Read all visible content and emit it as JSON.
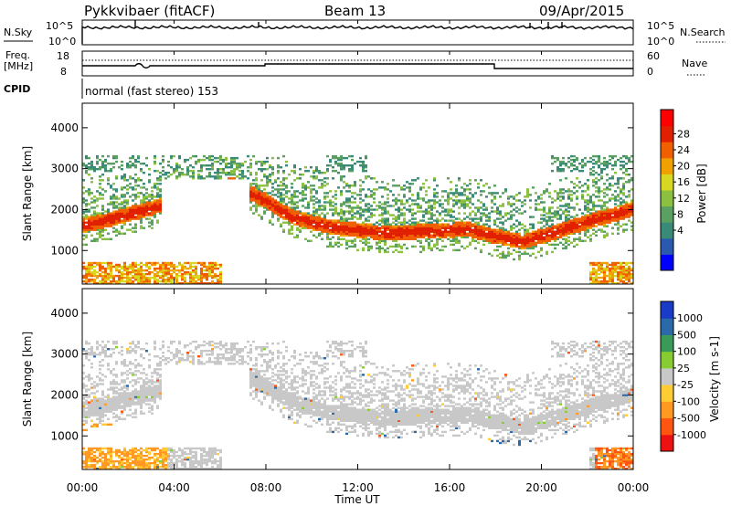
{
  "header": {
    "title": "Pykkvibaer (fitACF)",
    "beam": "Beam 13",
    "date": "09/Apr/2015"
  },
  "top_panels": {
    "nsky_label": "N.Sky",
    "nsky_ticks": [
      "10^5",
      "10^0"
    ],
    "nsearch_label": "N.Search",
    "nsearch_ticks": [
      "10^5",
      "10^0"
    ],
    "freq_label_1": "Freq.",
    "freq_label_2": "[MHz]",
    "freq_ticks": [
      "18",
      "8"
    ],
    "nave_label": "Nave",
    "nave_ticks": [
      "60",
      "0"
    ],
    "cpid_label": "CPID",
    "cpid_text": "normal (fast stereo) 153"
  },
  "chart_data": [
    {
      "type": "heatmap",
      "name": "power",
      "ylabel": "Slant Range [km]",
      "ylim": [
        180,
        4600
      ],
      "yticks": [
        "4000",
        "3000",
        "2000",
        "1000"
      ],
      "colorbar_label": "Power [dB]",
      "colorbar_ticks": [
        "28",
        "24",
        "20",
        "16",
        "12",
        "8",
        "4"
      ],
      "colorbar_colors": [
        "#0000ff",
        "#2a5ab0",
        "#3a8a78",
        "#5aa060",
        "#8cc040",
        "#d8d820",
        "#f0a000",
        "#f06000",
        "#e02000",
        "#ff0000"
      ]
    },
    {
      "type": "heatmap",
      "name": "velocity",
      "ylabel": "Slant Range [km]",
      "ylim": [
        180,
        4600
      ],
      "yticks": [
        "4000",
        "3000",
        "2000",
        "1000"
      ],
      "colorbar_label": "Velocity [m s-1]",
      "colorbar_ticks": [
        "1000",
        "500",
        "100",
        "25",
        "-25",
        "-100",
        "-500",
        "-1000"
      ],
      "colorbar_colors": [
        "#1a3ac8",
        "#2a6aa8",
        "#3a9a58",
        "#88cc33",
        "#c8c8c8",
        "#ffcc33",
        "#ff9922",
        "#ff5511",
        "#ee1111"
      ]
    }
  ],
  "xaxis": {
    "label": "Time UT",
    "ticks": [
      "00:00",
      "04:00",
      "08:00",
      "12:00",
      "16:00",
      "20:00",
      "00:00"
    ]
  }
}
